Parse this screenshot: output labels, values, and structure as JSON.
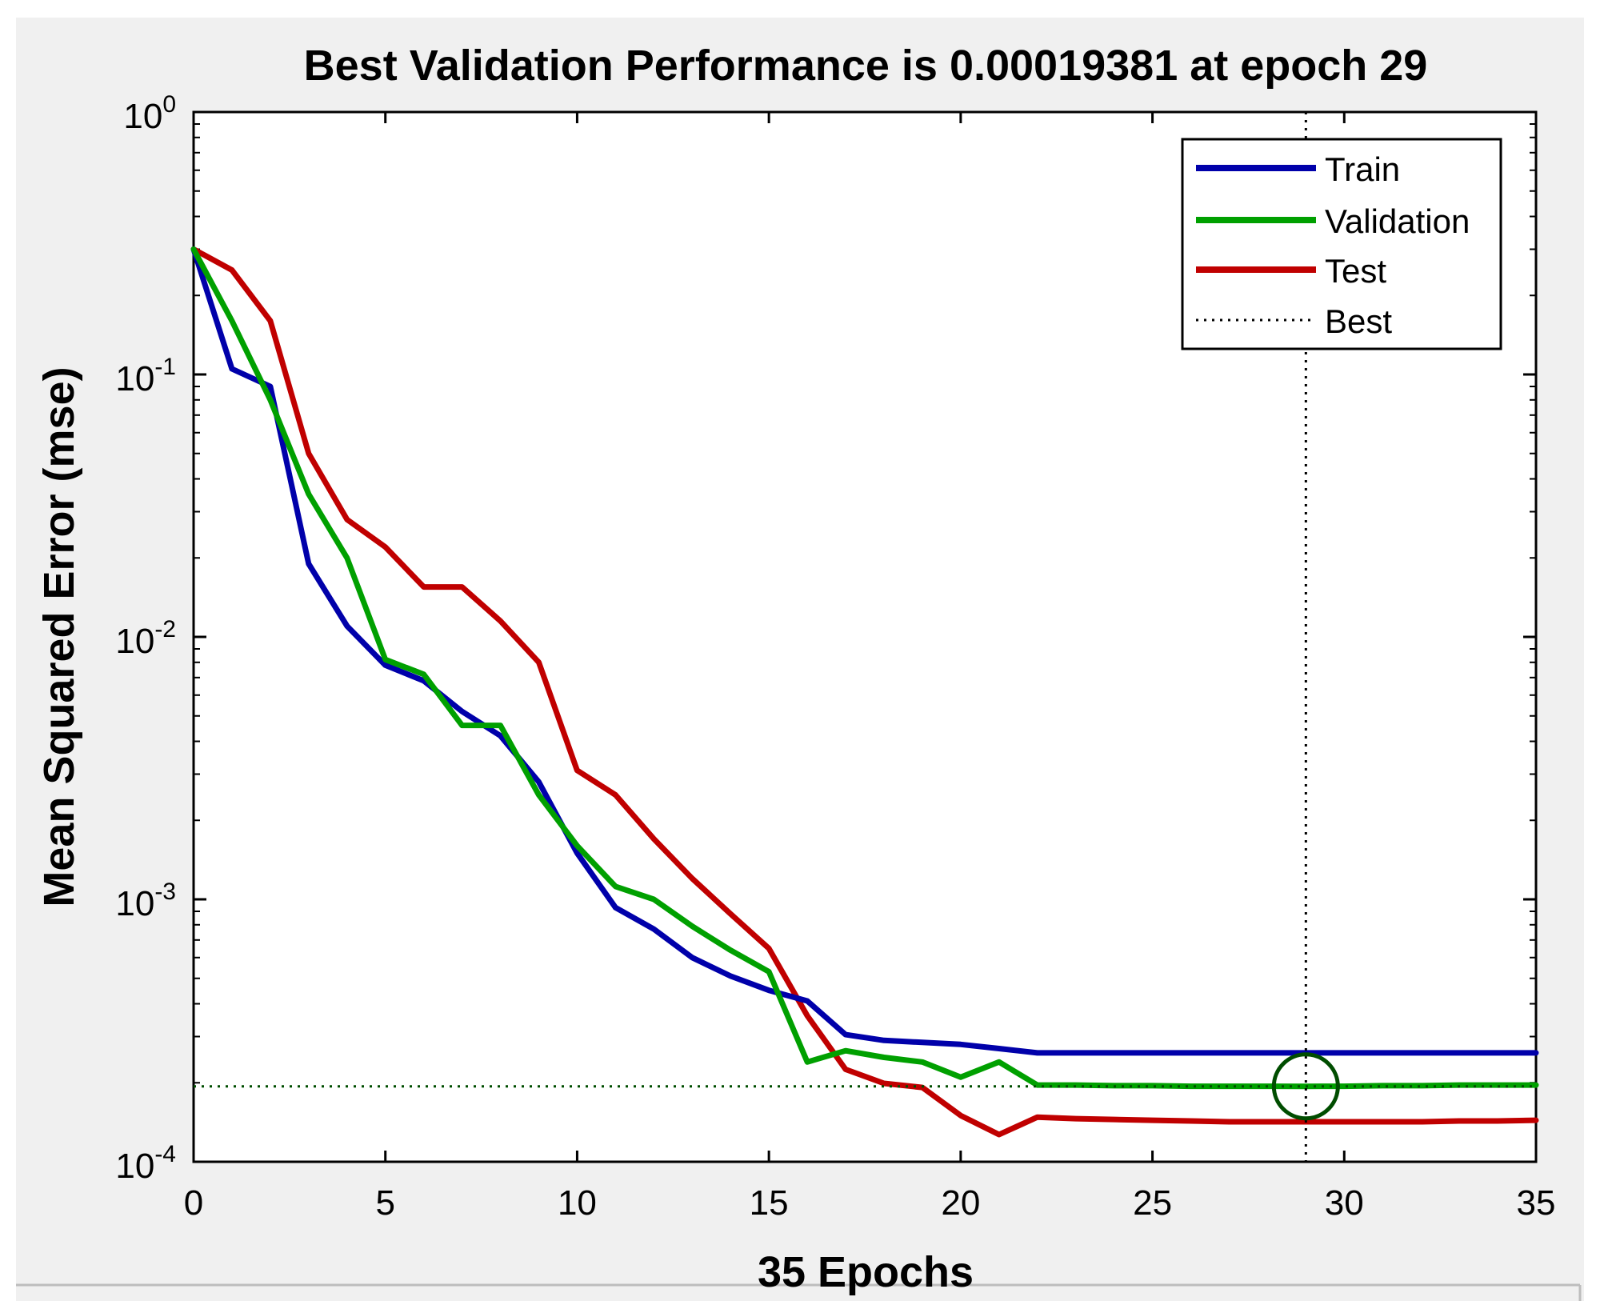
{
  "chart_data": {
    "type": "line",
    "yscale": "log",
    "title": "Best Validation Performance is 0.00019381 at epoch 29",
    "xlabel": "35 Epochs",
    "ylabel": "Mean Squared Error  (mse)",
    "xlim": [
      0,
      35
    ],
    "ylim": [
      0.0001,
      1
    ],
    "xticks": [
      0,
      5,
      10,
      15,
      20,
      25,
      30,
      35
    ],
    "yticks": [
      {
        "value": 1,
        "base": "10",
        "exp": "0"
      },
      {
        "value": 0.1,
        "base": "10",
        "exp": "-1"
      },
      {
        "value": 0.01,
        "base": "10",
        "exp": "-2"
      },
      {
        "value": 0.001,
        "base": "10",
        "exp": "-3"
      },
      {
        "value": 0.0001,
        "base": "10",
        "exp": "-4"
      }
    ],
    "x": [
      0,
      1,
      2,
      3,
      4,
      5,
      6,
      7,
      8,
      9,
      10,
      11,
      12,
      13,
      14,
      15,
      16,
      17,
      18,
      19,
      20,
      21,
      22,
      23,
      24,
      25,
      26,
      27,
      28,
      29,
      30,
      31,
      32,
      33,
      34,
      35
    ],
    "series": [
      {
        "name": "Train",
        "color": "#0000aa",
        "values": [
          0.3,
          0.105,
          0.09,
          0.019,
          0.011,
          0.0078,
          0.0068,
          0.0052,
          0.0042,
          0.0028,
          0.0015,
          0.00093,
          0.00077,
          0.0006,
          0.00051,
          0.00045,
          0.00041,
          0.000305,
          0.00029,
          0.000285,
          0.00028,
          0.00027,
          0.00026,
          0.00026,
          0.00026,
          0.00026,
          0.00026,
          0.00026,
          0.00026,
          0.00026,
          0.00026,
          0.00026,
          0.00026,
          0.00026,
          0.00026,
          0.00026
        ]
      },
      {
        "name": "Validation",
        "color": "#00a000",
        "values": [
          0.3,
          0.16,
          0.08,
          0.035,
          0.02,
          0.0082,
          0.0072,
          0.0046,
          0.0046,
          0.0025,
          0.0016,
          0.00112,
          0.001,
          0.00079,
          0.00064,
          0.00053,
          0.00024,
          0.000265,
          0.00025,
          0.00024,
          0.00021,
          0.00024,
          0.000196,
          0.000196,
          0.000195,
          0.000195,
          0.000194,
          0.000194,
          0.000194,
          0.00019381,
          0.000194,
          0.000195,
          0.000195,
          0.000196,
          0.000196,
          0.000196
        ]
      },
      {
        "name": "Test",
        "color": "#c00000",
        "values": [
          0.3,
          0.25,
          0.16,
          0.05,
          0.028,
          0.022,
          0.0155,
          0.0155,
          0.0115,
          0.008,
          0.0031,
          0.0025,
          0.0017,
          0.0012,
          0.00088,
          0.00065,
          0.00036,
          0.000225,
          0.000199,
          0.000192,
          0.00015,
          0.000127,
          0.000148,
          0.000146,
          0.000145,
          0.000144,
          0.000143,
          0.000142,
          0.000142,
          0.000142,
          0.000142,
          0.000142,
          0.000142,
          0.000143,
          0.000143,
          0.000144
        ]
      }
    ],
    "best": {
      "label": "Best",
      "epoch": 29,
      "value": 0.00019381,
      "color": "#004d00"
    },
    "legend": {
      "position": "top-right",
      "entries": [
        "Train",
        "Validation",
        "Test",
        "Best"
      ]
    }
  }
}
